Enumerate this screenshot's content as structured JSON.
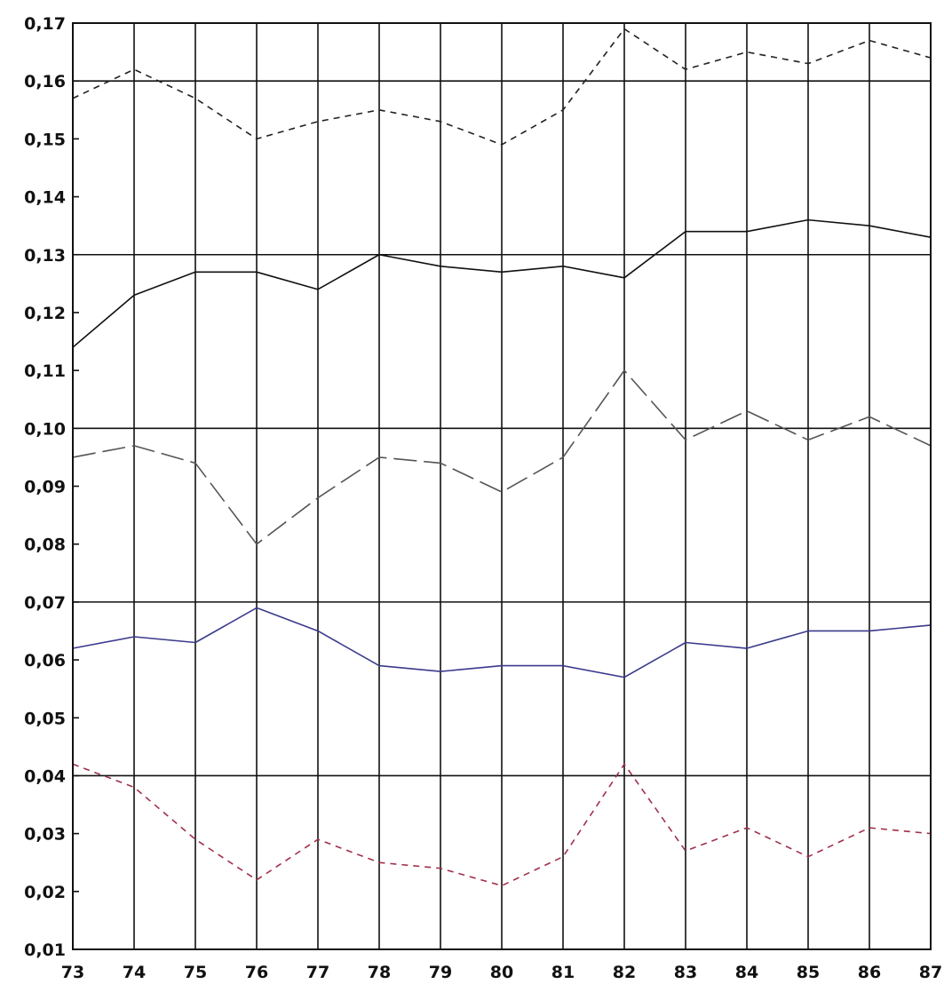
{
  "chart_data": {
    "type": "line",
    "title": "",
    "xlabel": "",
    "ylabel": "",
    "x": [
      "73",
      "74",
      "75",
      "76",
      "77",
      "78",
      "79",
      "80",
      "81",
      "82",
      "83",
      "84",
      "85",
      "86",
      "87"
    ],
    "xlim": [
      73,
      87
    ],
    "ylim": [
      0.01,
      0.17
    ],
    "y_ticks": [
      0.01,
      0.02,
      0.03,
      0.04,
      0.05,
      0.06,
      0.07,
      0.08,
      0.09,
      0.1,
      0.11,
      0.12,
      0.13,
      0.14,
      0.15,
      0.16,
      0.17
    ],
    "y_tick_labels": [
      "0,01",
      "0,02",
      "0,03",
      "0,04",
      "0,05",
      "0,06",
      "0,07",
      "0,08",
      "0,09",
      "0,10",
      "0,11",
      "0,12",
      "0,13",
      "0,14",
      "0,15",
      "0,16",
      "0,17"
    ],
    "major_gridlines_y": [
      0.04,
      0.07,
      0.1,
      0.13,
      0.16
    ],
    "vertical_gridlines": true,
    "legend": "none",
    "series": [
      {
        "values": [
          0.157,
          0.162,
          0.157,
          0.15,
          0.153,
          0.155,
          0.153,
          0.149,
          0.155,
          0.169,
          0.162,
          0.165,
          0.163,
          0.167,
          0.164
        ],
        "color": "#222222",
        "dash": "short-dash"
      },
      {
        "values": [
          0.114,
          0.123,
          0.127,
          0.127,
          0.124,
          0.13,
          0.128,
          0.127,
          0.128,
          0.126,
          0.134,
          0.134,
          0.136,
          0.135,
          0.133
        ],
        "color": "#111111",
        "dash": "solid"
      },
      {
        "values": [
          0.095,
          0.097,
          0.094,
          0.08,
          0.088,
          0.095,
          0.094,
          0.089,
          0.095,
          0.11,
          0.098,
          0.103,
          0.098,
          0.102,
          0.097
        ],
        "color": "#555555",
        "dash": "long-dash"
      },
      {
        "values": [
          0.062,
          0.064,
          0.063,
          0.069,
          0.065,
          0.059,
          0.058,
          0.059,
          0.059,
          0.057,
          0.063,
          0.062,
          0.065,
          0.065,
          0.066
        ],
        "color": "#3a3a8c",
        "dash": "solid"
      },
      {
        "values": [
          0.042,
          0.038,
          0.029,
          0.022,
          0.029,
          0.025,
          0.024,
          0.021,
          0.026,
          0.042,
          0.027,
          0.031,
          0.026,
          0.031,
          0.03
        ],
        "color": "#a0304a",
        "dash": "short-dash"
      }
    ]
  }
}
